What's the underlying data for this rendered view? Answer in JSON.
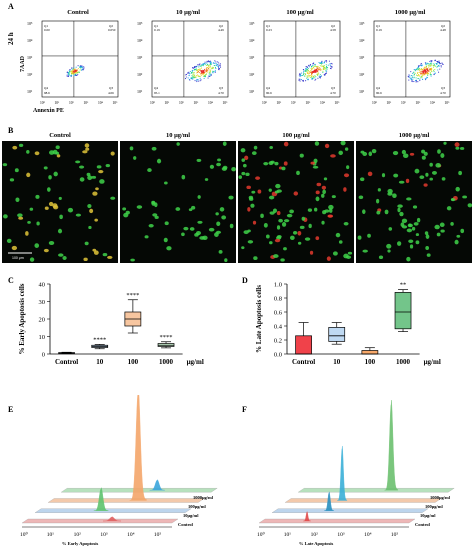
{
  "panels": {
    "A": {
      "letter": "A",
      "row_label": "24 h",
      "y_axis": "7AAD",
      "x_axis": "Annexin PE",
      "conditions": [
        "Control",
        "10 μg/ml",
        "100 μg/ml",
        "1000 μg/ml"
      ],
      "tick_labels": [
        "10⁵",
        "10⁴",
        "10³",
        "10²",
        "10¹"
      ],
      "x_tick_labels": [
        "10⁰",
        "10¹",
        "10²",
        "10³",
        "10⁴",
        "10⁵"
      ],
      "plots": [
        {
          "q1": "Q1",
          "q1v": "0.00",
          "q2": "Q2",
          "q2v": "0.050",
          "q3": "Q3",
          "q3v": "4.06",
          "q4": "Q4",
          "q4v": "98.6"
        },
        {
          "q1": "Q1",
          "q1v": "0.19",
          "q2": "Q2",
          "q2v": "4.49",
          "q3": "Q3",
          "q3v": "4.70",
          "q4": "Q4",
          "q4v": "95.1"
        },
        {
          "q1": "Q1",
          "q1v": "0.23",
          "q2": "Q2",
          "q2v": "4.58",
          "q3": "Q3",
          "q3v": "4.70",
          "q4": "Q4",
          "q4v": "90.6"
        },
        {
          "q1": "Q1",
          "q1v": "0.19",
          "q2": "Q2",
          "q2v": "4.48",
          "q3": "Q3",
          "q3v": "4.70",
          "q4": "Q4",
          "q4v": "90.6"
        }
      ]
    },
    "B": {
      "letter": "B",
      "conditions": [
        "Control",
        "10 μg/ml",
        "100 μg/ml",
        "1000 μg/ml"
      ],
      "scale_bar": "100 μm"
    },
    "E": {
      "letter": "E",
      "x_axis": "% Early Apoptosis",
      "series": [
        "Control",
        "10μg/ml",
        "100μg/ml",
        "1000μg/ml"
      ]
    },
    "F": {
      "letter": "F",
      "x_axis": "% Late Apoptosis",
      "series": [
        "Control",
        "10μg/ml",
        "100μg/ml",
        "1000μg/ml"
      ]
    }
  },
  "chart_data": [
    {
      "panel": "C",
      "type": "box",
      "ylabel": "% Early Apoptosis cells",
      "xlabel_unit": "μg/ml",
      "ylim": [
        0,
        40
      ],
      "yticks": [
        0,
        10,
        20,
        30,
        40
      ],
      "categories": [
        "Control",
        "10",
        "100",
        "1000"
      ],
      "boxes": [
        {
          "min": 0.2,
          "q1": 0.4,
          "median": 0.6,
          "q3": 0.8,
          "max": 1.0,
          "sig": "",
          "color": "#f3b6b6"
        },
        {
          "min": 3.0,
          "q1": 3.7,
          "median": 4.3,
          "q3": 5.0,
          "max": 5.5,
          "sig": "****",
          "color": "#bfd9f2"
        },
        {
          "min": 12.0,
          "q1": 16.0,
          "median": 20.0,
          "q3": 24.0,
          "max": 31.0,
          "sig": "****",
          "color": "#f7c6a0"
        },
        {
          "min": 3.5,
          "q1": 4.3,
          "median": 5.0,
          "q3": 6.0,
          "max": 7.0,
          "sig": "****",
          "color": "#bfe3c4"
        }
      ]
    },
    {
      "panel": "D",
      "type": "box",
      "ylabel": "% Late Apoptosis cells",
      "xlabel_unit": "μg/ml",
      "ylim": [
        0,
        1.0
      ],
      "yticks": [
        "0.0",
        "0.2",
        "0.4",
        "0.6",
        "0.8",
        "1.0"
      ],
      "categories": [
        "Control",
        "10",
        "100",
        "1000"
      ],
      "boxes": [
        {
          "min": 0.0,
          "q1": 0.0,
          "median": 0.0,
          "q3": 0.26,
          "max": 0.45,
          "sig": "",
          "color": "#f0424a"
        },
        {
          "min": 0.14,
          "q1": 0.18,
          "median": 0.26,
          "q3": 0.38,
          "max": 0.45,
          "sig": "",
          "color": "#bfd9f2"
        },
        {
          "min": 0.0,
          "q1": 0.0,
          "median": 0.0,
          "q3": 0.05,
          "max": 0.09,
          "sig": "",
          "color": "#f7a86a"
        },
        {
          "min": 0.32,
          "q1": 0.36,
          "median": 0.6,
          "q3": 0.88,
          "max": 0.92,
          "sig": "**",
          "color": "#73c58a"
        }
      ]
    }
  ]
}
